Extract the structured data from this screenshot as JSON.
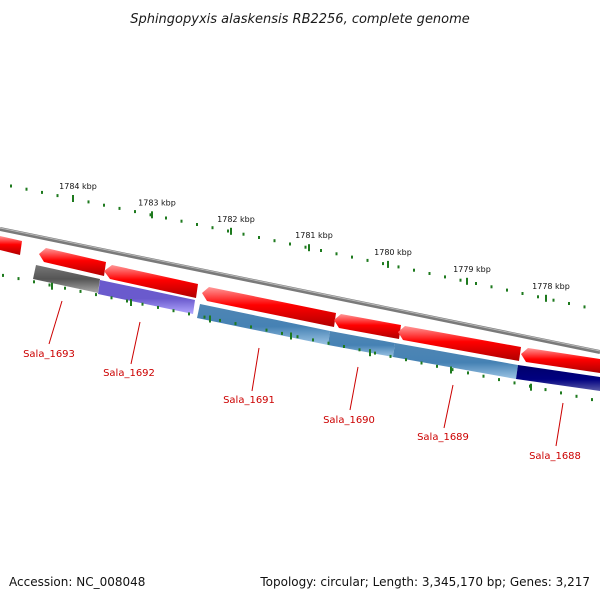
{
  "title": "Sphingopyxis alaskensis RB2256, complete genome",
  "accession_label": "Accession: NC_008048",
  "topology_label": "Topology: circular; Length: 3,345,170 bp; Genes: 3,217",
  "colors": {
    "backbone": "#7a7a7a",
    "tick": "#1e7a1e",
    "gene_label": "#cc0000",
    "forward_cds": "#ff0000",
    "dark_gray": "#555555",
    "purple": "#6a5acd",
    "steel_blue": "#4682b4",
    "navy": "#000080"
  },
  "kbp_labels": [
    "1784 kbp",
    "1783 kbp",
    "1782 kbp",
    "1781 kbp",
    "1780 kbp",
    "1779 kbp",
    "1778 kbp"
  ],
  "genes": [
    {
      "label": "Sala_1693",
      "color": "dark_gray"
    },
    {
      "label": "Sala_1692",
      "color": "purple"
    },
    {
      "label": "Sala_1691",
      "color": "steel_blue"
    },
    {
      "label": "Sala_1690",
      "color": "steel_blue"
    },
    {
      "label": "Sala_1689",
      "color": "steel_blue"
    },
    {
      "label": "Sala_1688",
      "color": "navy"
    }
  ]
}
